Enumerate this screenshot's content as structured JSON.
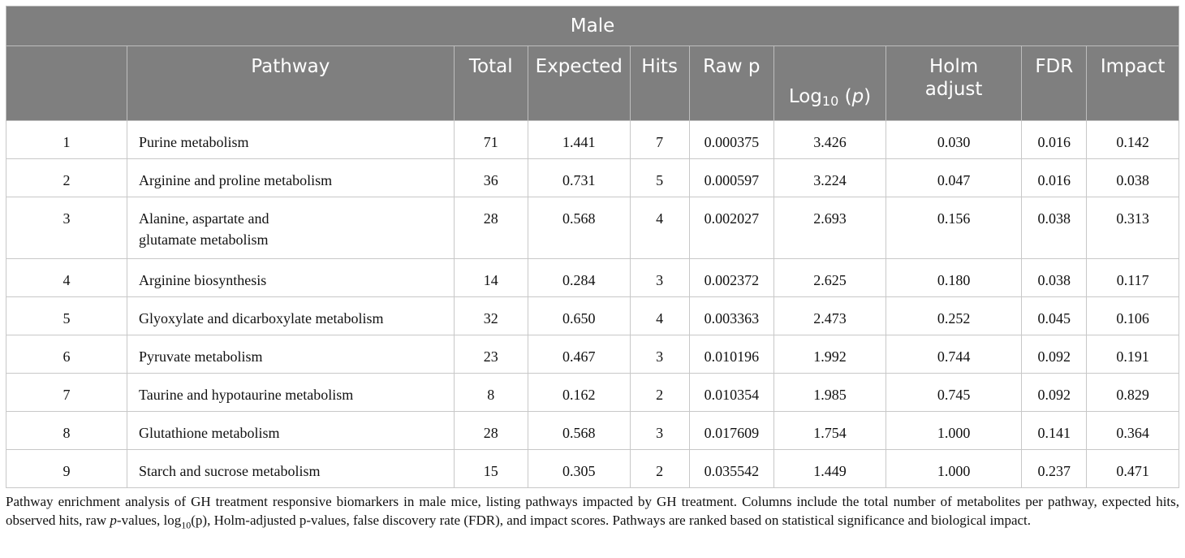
{
  "table": {
    "title": "Male",
    "headers": {
      "pathway": "Pathway",
      "total": "Total",
      "expected": "Expected",
      "hits": "Hits",
      "raw_p": "Raw p",
      "log10_p_prefix": "Log",
      "log10_p_sub": "10",
      "log10_p_open": " (",
      "log10_p_var": "p",
      "log10_p_close": ")",
      "holm_line1": "Holm",
      "holm_line2": "adjust",
      "fdr": "FDR",
      "impact": "Impact"
    },
    "rows": [
      {
        "rank": "1",
        "pathway": [
          "Purine metabolism"
        ],
        "total": "71",
        "expected": "1.441",
        "hits": "7",
        "raw_p": "0.000375",
        "log10_p": "3.426",
        "holm": "0.030",
        "fdr": "0.016",
        "impact": "0.142"
      },
      {
        "rank": "2",
        "pathway": [
          "Arginine and proline metabolism"
        ],
        "total": "36",
        "expected": "0.731",
        "hits": "5",
        "raw_p": "0.000597",
        "log10_p": "3.224",
        "holm": "0.047",
        "fdr": "0.016",
        "impact": "0.038"
      },
      {
        "rank": "3",
        "pathway": [
          "Alanine, aspartate and",
          "glutamate metabolism"
        ],
        "total": "28",
        "expected": "0.568",
        "hits": "4",
        "raw_p": "0.002027",
        "log10_p": "2.693",
        "holm": "0.156",
        "fdr": "0.038",
        "impact": "0.313"
      },
      {
        "rank": "4",
        "pathway": [
          "Arginine biosynthesis"
        ],
        "total": "14",
        "expected": "0.284",
        "hits": "3",
        "raw_p": "0.002372",
        "log10_p": "2.625",
        "holm": "0.180",
        "fdr": "0.038",
        "impact": "0.117"
      },
      {
        "rank": "5",
        "pathway": [
          "Glyoxylate and dicarboxylate metabolism"
        ],
        "total": "32",
        "expected": "0.650",
        "hits": "4",
        "raw_p": "0.003363",
        "log10_p": "2.473",
        "holm": "0.252",
        "fdr": "0.045",
        "impact": "0.106"
      },
      {
        "rank": "6",
        "pathway": [
          "Pyruvate metabolism"
        ],
        "total": "23",
        "expected": "0.467",
        "hits": "3",
        "raw_p": "0.010196",
        "log10_p": "1.992",
        "holm": "0.744",
        "fdr": "0.092",
        "impact": "0.191"
      },
      {
        "rank": "7",
        "pathway": [
          "Taurine and hypotaurine metabolism"
        ],
        "total": "8",
        "expected": "0.162",
        "hits": "2",
        "raw_p": "0.010354",
        "log10_p": "1.985",
        "holm": "0.745",
        "fdr": "0.092",
        "impact": "0.829"
      },
      {
        "rank": "8",
        "pathway": [
          "Glutathione metabolism"
        ],
        "total": "28",
        "expected": "0.568",
        "hits": "3",
        "raw_p": "0.017609",
        "log10_p": "1.754",
        "holm": "1.000",
        "fdr": "0.141",
        "impact": "0.364"
      },
      {
        "rank": "9",
        "pathway": [
          "Starch and sucrose metabolism"
        ],
        "total": "15",
        "expected": "0.305",
        "hits": "2",
        "raw_p": "0.035542",
        "log10_p": "1.449",
        "holm": "1.000",
        "fdr": "0.237",
        "impact": "0.471"
      }
    ]
  },
  "caption": {
    "part1": "Pathway enrichment analysis of GH treatment responsive biomarkers in male mice, listing pathways impacted by GH treatment. Columns include the total number of metabolites per pathway, expected hits, observed hits, raw ",
    "italic_p": "p",
    "part2": "-values, log",
    "sub10": "10",
    "part3": "(p), Holm-adjusted p-values, false discovery rate (FDR), and impact scores. Pathways are ranked based on statistical significance and biological impact."
  }
}
